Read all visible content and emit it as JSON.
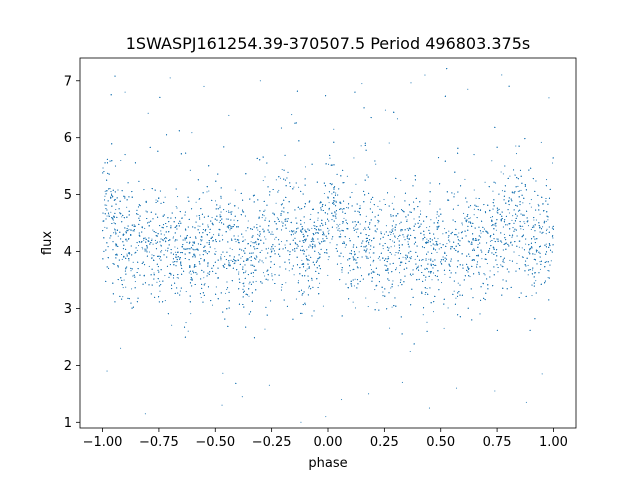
{
  "chart_data": {
    "type": "scatter",
    "title": "1SWASPJ161254.39-370507.5 Period 496803.375s",
    "xlabel": "phase",
    "ylabel": "flux",
    "xlim": [
      -1.1,
      1.1
    ],
    "ylim": [
      0.9,
      7.4
    ],
    "x_ticks": [
      -1.0,
      -0.75,
      -0.5,
      -0.25,
      0.0,
      0.25,
      0.5,
      0.75,
      1.0
    ],
    "x_tick_labels": [
      "−1.00",
      "−0.75",
      "−0.50",
      "−0.25",
      "0.00",
      "0.25",
      "0.50",
      "0.75",
      "1.00"
    ],
    "y_ticks": [
      1,
      2,
      3,
      4,
      5,
      6,
      7
    ],
    "y_tick_labels": [
      "1",
      "2",
      "3",
      "4",
      "5",
      "6",
      "7"
    ],
    "grid": false,
    "series_color": "#1f77b4",
    "profile": {
      "phase": [
        -1.0,
        -0.975,
        -0.95,
        -0.9,
        -0.85,
        -0.8,
        -0.75,
        -0.7,
        -0.65,
        -0.6,
        -0.55,
        -0.5,
        -0.45,
        -0.4,
        -0.35,
        -0.3,
        -0.25,
        -0.2,
        -0.15,
        -0.1,
        -0.05,
        0.0,
        0.025,
        0.05,
        0.1,
        0.15,
        0.2,
        0.25,
        0.3,
        0.35,
        0.4,
        0.45,
        0.5,
        0.55,
        0.6,
        0.65,
        0.7,
        0.75,
        0.8,
        0.85,
        0.9,
        0.95,
        1.0
      ],
      "median_flux": [
        4.6,
        4.9,
        4.3,
        4.0,
        4.1,
        4.2,
        4.1,
        4.0,
        3.9,
        4.0,
        4.1,
        4.2,
        4.0,
        4.1,
        3.9,
        4.1,
        4.2,
        4.4,
        4.3,
        4.0,
        4.1,
        4.6,
        4.9,
        4.3,
        4.1,
        4.3,
        4.2,
        4.1,
        4.0,
        4.1,
        4.0,
        3.9,
        4.2,
        4.1,
        4.0,
        4.1,
        4.0,
        4.2,
        4.4,
        4.6,
        4.2,
        4.1,
        4.6
      ],
      "scatter_sigma": 0.5,
      "n_points": 9000
    },
    "outliers": [
      [
        -0.98,
        1.9
      ],
      [
        -0.92,
        2.3
      ],
      [
        -0.81,
        1.15
      ],
      [
        -0.62,
        2.6
      ],
      [
        -0.47,
        1.3
      ],
      [
        -0.38,
        1.45
      ],
      [
        -0.26,
        1.65
      ],
      [
        -0.12,
        1.0
      ],
      [
        -0.01,
        1.1
      ],
      [
        0.06,
        1.4
      ],
      [
        0.18,
        1.5
      ],
      [
        0.33,
        1.7
      ],
      [
        0.45,
        1.25
      ],
      [
        0.57,
        1.6
      ],
      [
        0.74,
        1.55
      ],
      [
        0.88,
        1.35
      ],
      [
        0.95,
        1.85
      ],
      [
        -0.55,
        6.9
      ],
      [
        0.43,
        7.1
      ],
      [
        -0.9,
        6.8
      ],
      [
        -0.3,
        7.0
      ],
      [
        0.62,
        6.85
      ],
      [
        0.15,
        6.95
      ],
      [
        0.98,
        6.7
      ],
      [
        -0.7,
        7.05
      ]
    ]
  }
}
